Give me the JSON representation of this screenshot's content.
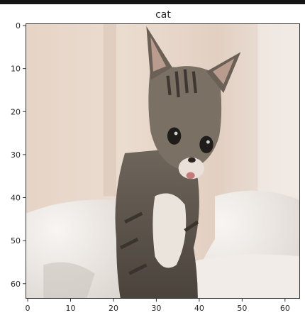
{
  "title": "cat",
  "image": {
    "description_name": "cat-photo",
    "colors": {
      "wall": "#e7d6c8",
      "wall_light": "#f1e8e1",
      "blanket": "#f4f0ec",
      "blanket_shadow": "#d9d4cf",
      "fur_dark": "#4a433c",
      "fur_mid": "#7a6e62",
      "fur_light": "#a89b8c",
      "chest": "#ece6de",
      "ear_inner": "#c9a89a",
      "mouth": "#c77c78"
    }
  },
  "axes": {
    "x_ticks": [
      "0",
      "10",
      "20",
      "30",
      "40",
      "50",
      "60"
    ],
    "y_ticks": [
      "0",
      "10",
      "20",
      "30",
      "40",
      "50",
      "60"
    ],
    "x_range": [
      -0.5,
      63.5
    ],
    "y_range": [
      -0.5,
      63.5
    ]
  }
}
